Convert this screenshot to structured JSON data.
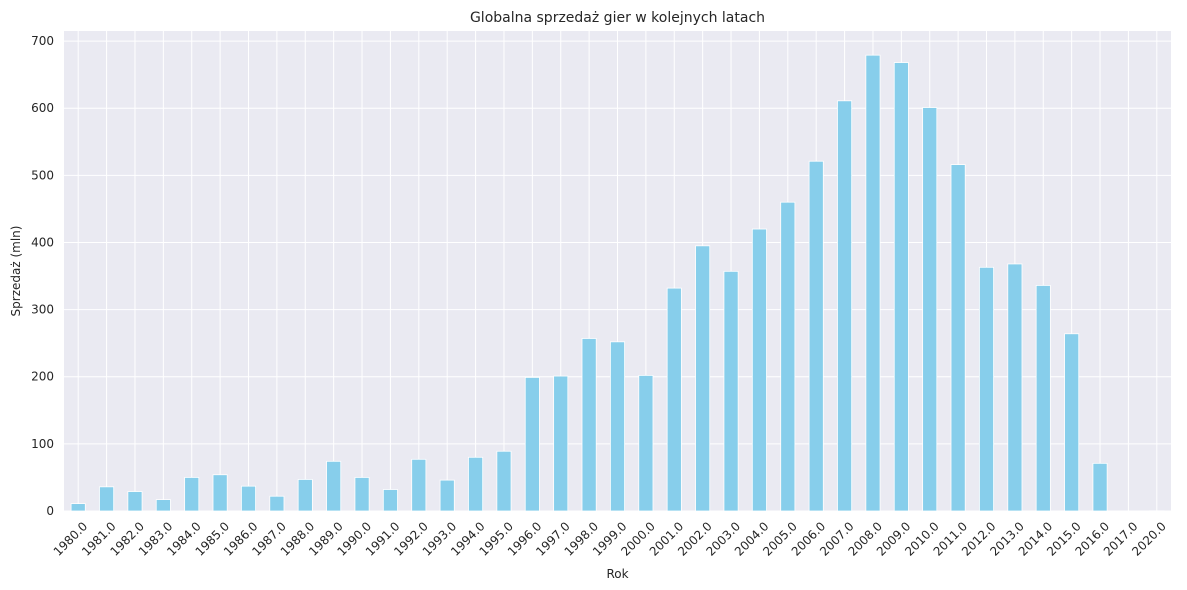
{
  "chart_data": {
    "type": "bar",
    "title": "Globalna sprzedaż gier w kolejnych latach",
    "xlabel": "Rok",
    "ylabel": "Sprzedaż (mln)",
    "categories": [
      "1980.0",
      "1981.0",
      "1982.0",
      "1983.0",
      "1984.0",
      "1985.0",
      "1986.0",
      "1987.0",
      "1988.0",
      "1989.0",
      "1990.0",
      "1991.0",
      "1992.0",
      "1993.0",
      "1994.0",
      "1995.0",
      "1996.0",
      "1997.0",
      "1998.0",
      "1999.0",
      "2000.0",
      "2001.0",
      "2002.0",
      "2003.0",
      "2004.0",
      "2005.0",
      "2006.0",
      "2007.0",
      "2008.0",
      "2009.0",
      "2010.0",
      "2011.0",
      "2012.0",
      "2013.0",
      "2014.0",
      "2015.0",
      "2016.0",
      "2017.0",
      "2020.0"
    ],
    "values": [
      11,
      36,
      29,
      17,
      50,
      54,
      37,
      22,
      47,
      74,
      50,
      32,
      77,
      46,
      80,
      89,
      199,
      201,
      257,
      252,
      202,
      332,
      395,
      357,
      420,
      460,
      521,
      611,
      679,
      668,
      601,
      516,
      363,
      368,
      336,
      264,
      71,
      0.1,
      0.3
    ],
    "ylim": [
      0,
      715
    ],
    "yticks": [
      0,
      100,
      200,
      300,
      400,
      500,
      600,
      700
    ],
    "grid": true,
    "bar_color": "#87ceeb",
    "background_color": "#eaeaf2",
    "grid_color": "#ffffff"
  }
}
